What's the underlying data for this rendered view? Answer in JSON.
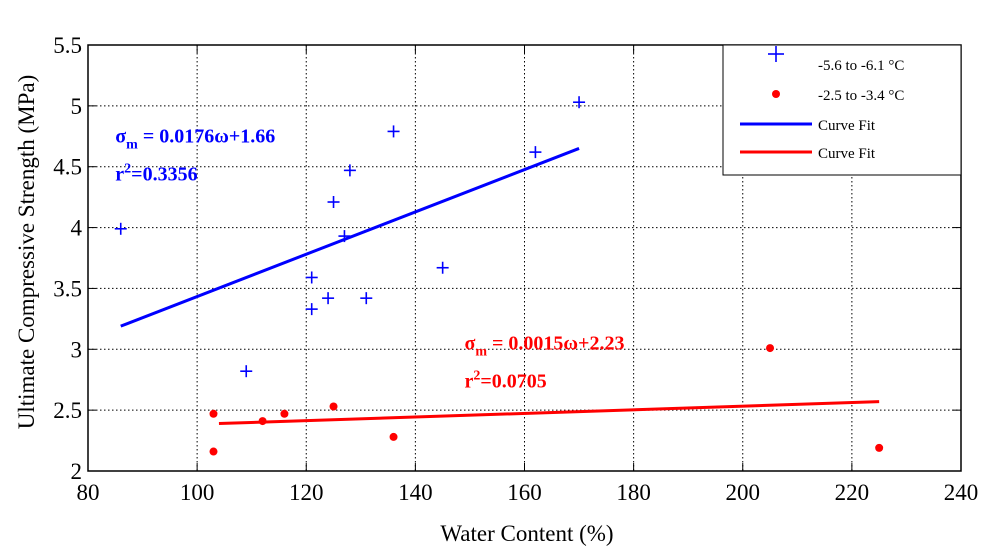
{
  "chart_data": {
    "type": "scatter",
    "xlabel": "Water Content (%)",
    "ylabel": "Ultimate Compressive Strength (MPa)",
    "xlim": [
      80,
      240
    ],
    "ylim": [
      2,
      5.5
    ],
    "xticks": [
      80,
      100,
      120,
      140,
      160,
      180,
      200,
      220,
      240
    ],
    "yticks": [
      2,
      2.5,
      3,
      3.5,
      4,
      4.5,
      5,
      5.5
    ],
    "xtick_labels": [
      "80",
      "100",
      "120",
      "140",
      "160",
      "180",
      "200",
      "220",
      "240"
    ],
    "ytick_labels": [
      "2",
      "2.5",
      "3",
      "3.5",
      "4",
      "4.5",
      "5",
      "5.5"
    ],
    "grid": true,
    "legend_position": "top-right",
    "series": [
      {
        "name": "-5.6 to -6.1 °C",
        "marker": "plus",
        "color": "#0000ff",
        "x": [
          86,
          109,
          121,
          121,
          124,
          125,
          127,
          128,
          131,
          136,
          145,
          162,
          170
        ],
        "y": [
          3.99,
          2.82,
          3.59,
          3.33,
          3.42,
          4.21,
          3.93,
          4.47,
          3.42,
          4.79,
          3.67,
          4.62,
          5.03
        ]
      },
      {
        "name": "-2.5 to -3.4 °C",
        "marker": "dot",
        "color": "#ff0000",
        "x": [
          103,
          103,
          112,
          116,
          125,
          136,
          205,
          225
        ],
        "y": [
          2.47,
          2.16,
          2.41,
          2.47,
          2.53,
          2.28,
          3.01,
          2.19
        ]
      }
    ],
    "fits": [
      {
        "name": "Curve Fit",
        "color": "#0000ff",
        "x": [
          86,
          170
        ],
        "y": [
          3.19,
          4.65
        ]
      },
      {
        "name": "Curve Fit",
        "color": "#ff0000",
        "x": [
          104,
          225
        ],
        "y": [
          2.39,
          2.57
        ]
      }
    ],
    "annotations": [
      {
        "sym": "σ",
        "sub": "m",
        "rest": " = 0.0176ω+1.66",
        "r2": "0.3356",
        "color": "#0000ff",
        "x": 85,
        "y": 4.7
      },
      {
        "sym": "σ",
        "sub": "m",
        "rest": " = 0.0015ω+2.23",
        "r2": "0.0705",
        "color": "#ff0000",
        "x": 149,
        "y": 3.0
      }
    ]
  }
}
